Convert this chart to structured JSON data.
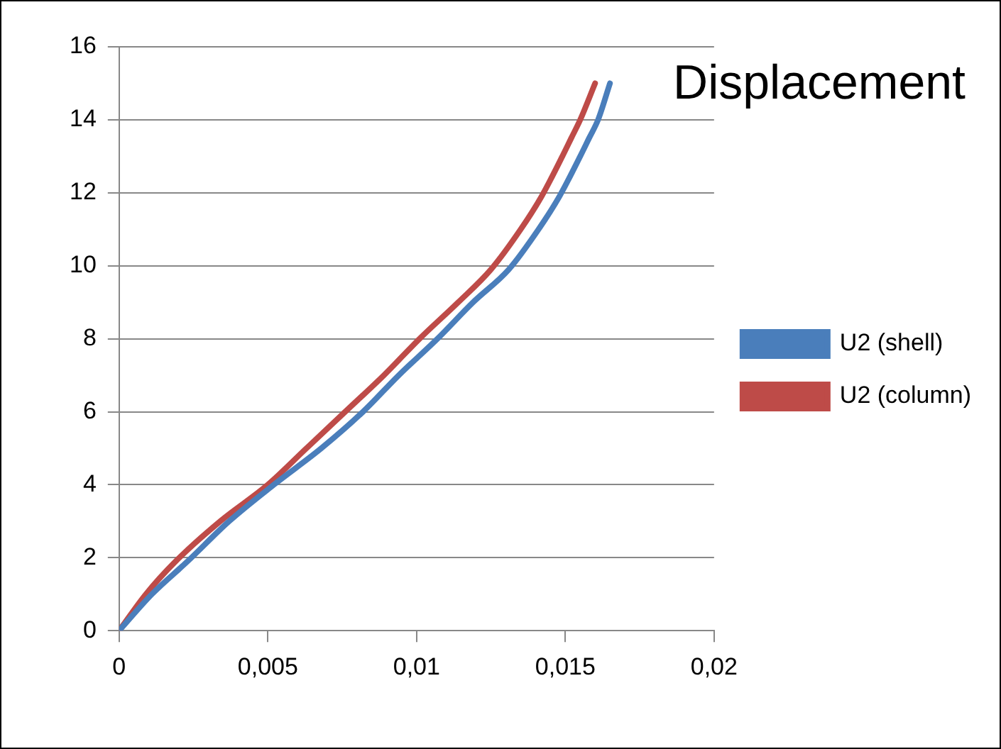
{
  "chart_data": {
    "type": "line",
    "title": "Displacement",
    "xlim": [
      0,
      0.02
    ],
    "xticks": [
      0,
      {
        "value": 0.005,
        "label": "0,005"
      },
      {
        "value": 0.01,
        "label": "0,01"
      },
      {
        "value": 0.015,
        "label": "0,015"
      },
      {
        "value": 0.02,
        "label": "0,02"
      }
    ],
    "ylim": [
      0,
      16
    ],
    "yticks": [
      0,
      2,
      4,
      6,
      8,
      10,
      12,
      14,
      16
    ],
    "grid": "y",
    "legend": "right",
    "marker": "none",
    "line_style": "solid",
    "series": [
      {
        "name": "U2 (shell)",
        "color": "#4a7ebb",
        "x": [
          0,
          0.0011,
          0.0023,
          0.0037,
          0.0052,
          0.0068,
          0.0082,
          0.0094,
          0.0107,
          0.0119,
          0.0131,
          0.0141,
          0.0148,
          0.0155,
          0.0158,
          0.0161,
          0.0165
        ],
        "values": [
          0,
          1,
          1.9,
          3,
          4.0,
          5,
          6.0,
          7,
          8.0,
          9,
          9.9,
          11,
          11.9,
          13,
          13.5,
          14,
          15.0
        ]
      },
      {
        "name": "U2 (column)",
        "color": "#be4b48",
        "x": [
          0,
          0.0009,
          0.0019,
          0.0034,
          0.005,
          0.0063,
          0.0076,
          0.0089,
          0.0101,
          0.0114,
          0.0125,
          0.0135,
          0.0142,
          0.0149,
          0.0152,
          0.0155,
          0.016
        ],
        "values": [
          0,
          1,
          1.9,
          3,
          4.0,
          5,
          6.0,
          7,
          8.0,
          9,
          9.9,
          11,
          11.9,
          13,
          13.5,
          14,
          15.0
        ]
      }
    ]
  }
}
